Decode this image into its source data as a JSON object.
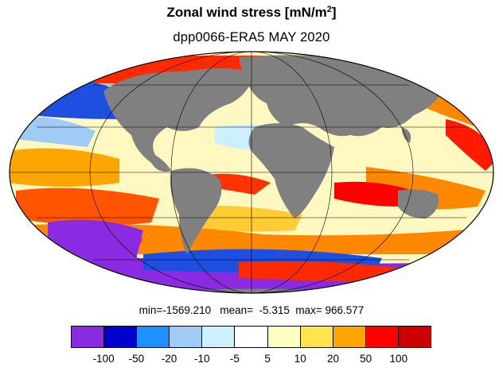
{
  "title": {
    "main": "Zonal wind stress [mN/m",
    "sup": "2",
    "close": "]"
  },
  "subtitle": "dpp0066-ERA5  MAY 2020",
  "stats": {
    "min_label": "min=",
    "min": "-1569.210",
    "mean_label": "mean=",
    "mean": "-5.315",
    "max_label": "max=",
    "max": "966.577"
  },
  "colorbar": {
    "colors": [
      "#8a2be2",
      "#0000cd",
      "#1e90ff",
      "#9fcbf5",
      "#cdf0ff",
      "#ffffff",
      "#ffffc4",
      "#ffe44d",
      "#ffa500",
      "#ff0000",
      "#cc0000"
    ],
    "ticks": [
      "-100",
      "-50",
      "-20",
      "-10",
      "-5",
      "5",
      "10",
      "20",
      "50",
      "100"
    ]
  },
  "map": {
    "projection": "mollweide",
    "land_color": "#808080",
    "graticule": true
  }
}
